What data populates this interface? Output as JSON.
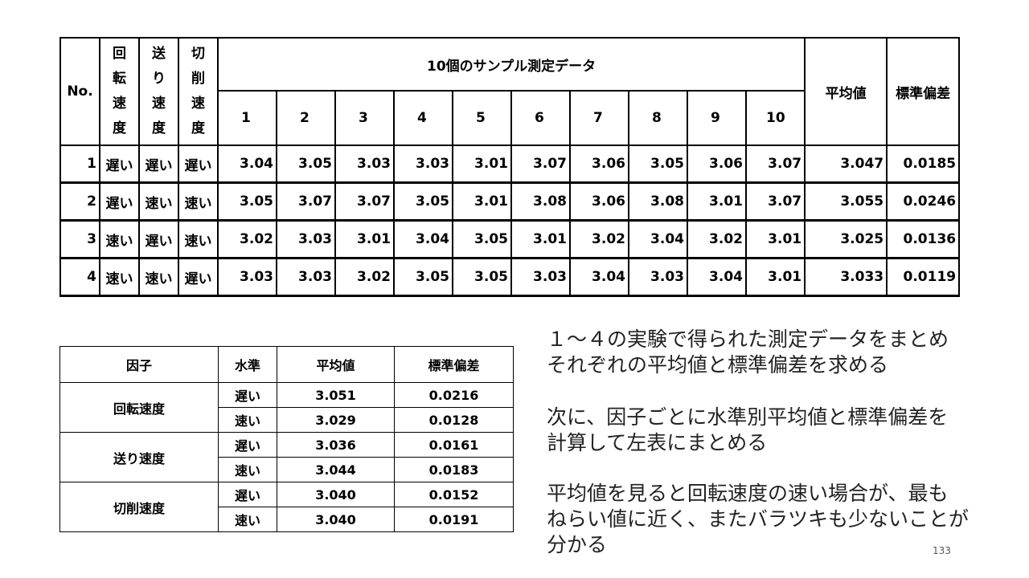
{
  "main_table": {
    "header": {
      "no": "No.",
      "factor1": "回転速度",
      "factor2": "送り速度",
      "factor3": "切削速度",
      "samples_group": "10個のサンプル測定データ",
      "sample_cols": [
        "1",
        "2",
        "3",
        "4",
        "5",
        "6",
        "7",
        "8",
        "9",
        "10"
      ],
      "mean": "平均値",
      "std": "標準偏差"
    },
    "rows": [
      {
        "no": "1",
        "f1": "遅い",
        "f2": "遅い",
        "f3": "遅い",
        "samples": [
          "3.04",
          "3.05",
          "3.03",
          "3.03",
          "3.01",
          "3.07",
          "3.06",
          "3.05",
          "3.06",
          "3.07"
        ],
        "mean": "3.047",
        "std": "0.0185"
      },
      {
        "no": "2",
        "f1": "遅い",
        "f2": "速い",
        "f3": "速い",
        "samples": [
          "3.05",
          "3.07",
          "3.07",
          "3.05",
          "3.01",
          "3.08",
          "3.06",
          "3.08",
          "3.01",
          "3.07"
        ],
        "mean": "3.055",
        "std": "0.0246"
      },
      {
        "no": "3",
        "f1": "速い",
        "f2": "遅い",
        "f3": "速い",
        "samples": [
          "3.02",
          "3.03",
          "3.01",
          "3.04",
          "3.05",
          "3.01",
          "3.02",
          "3.04",
          "3.02",
          "3.01"
        ],
        "mean": "3.025",
        "std": "0.0136"
      },
      {
        "no": "4",
        "f1": "速い",
        "f2": "速い",
        "f3": "遅い",
        "samples": [
          "3.03",
          "3.03",
          "3.02",
          "3.05",
          "3.05",
          "3.03",
          "3.04",
          "3.03",
          "3.04",
          "3.01"
        ],
        "mean": "3.033",
        "std": "0.0119"
      }
    ]
  },
  "summary_table": {
    "header": {
      "factor": "因子",
      "level": "水準",
      "mean": "平均値",
      "std": "標準偏差"
    },
    "groups": [
      {
        "factor": "回転速度",
        "levels": [
          {
            "level": "遅い",
            "mean": "3.051",
            "std": "0.0216"
          },
          {
            "level": "速い",
            "mean": "3.029",
            "std": "0.0128"
          }
        ]
      },
      {
        "factor": "送り速度",
        "levels": [
          {
            "level": "遅い",
            "mean": "3.036",
            "std": "0.0161"
          },
          {
            "level": "速い",
            "mean": "3.044",
            "std": "0.0183"
          }
        ]
      },
      {
        "factor": "切削速度",
        "levels": [
          {
            "level": "遅い",
            "mean": "3.040",
            "std": "0.0152"
          },
          {
            "level": "速い",
            "mean": "3.040",
            "std": "0.0191"
          }
        ]
      }
    ]
  },
  "notes": {
    "p1_line1": "１～４の実験で得られた測定データをまとめ",
    "p1_line2": "それぞれの平均値と標準偏差を求める",
    "p2_line1": "次に、因子ごとに水準別平均値と標準偏差を",
    "p2_line2": "計算して左表にまとめる",
    "p3_line1": "平均値を見ると回転速度の速い場合が、最も",
    "p3_line2": "ねらい値に近く、またバラツキも少ないことが",
    "p3_line3": "分かる"
  },
  "page_number": "133"
}
